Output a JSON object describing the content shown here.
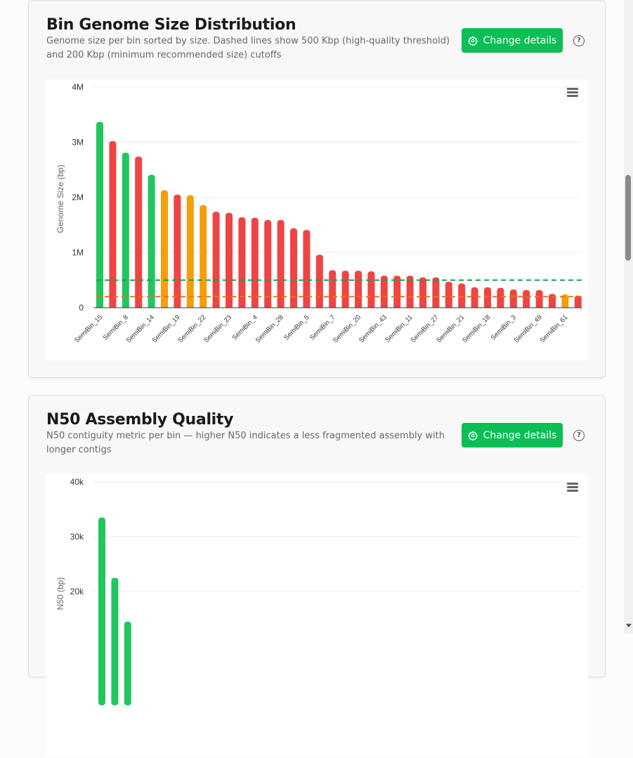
{
  "colors": {
    "high": "#22c55e",
    "medium": "#f59e0b",
    "low": "#ef4444",
    "button": "#0bbf55",
    "line_500k": "#16a34a",
    "line_200k": "#ea7317"
  },
  "cards": [
    {
      "title": "Bin Genome Size Distribution",
      "subtitle": "Genome size per bin sorted by size. Dashed lines show 500 Kbp (high-quality threshold) and 200 Kbp (minimum recommended size) cutoffs",
      "button": "Change details",
      "button_icon": "gear-icon",
      "help_icon": "question-circle-icon",
      "menu_icon": "hamburger-menu-icon"
    },
    {
      "title": "N50 Assembly Quality",
      "subtitle": "N50 contiguity metric per bin — higher N50 indicates a less fragmented assembly with longer contigs",
      "button": "Change details",
      "button_icon": "gear-icon",
      "help_icon": "question-circle-icon",
      "menu_icon": "hamburger-menu-icon"
    }
  ],
  "chart_data": [
    {
      "type": "bar",
      "ylabel": "Genome Size (bp)",
      "ylim": [
        0,
        4000000
      ],
      "yticks": [
        "0",
        "1M",
        "2M",
        "3M",
        "4M"
      ],
      "yticks_values": [
        0,
        1000000,
        2000000,
        3000000,
        4000000
      ],
      "tick_labels": [
        "SemiBin_15",
        "SemiBin_8",
        "SemiBin_14",
        "SemiBin_19",
        "SemiBin_22",
        "SemiBin_23",
        "SemiBin_4",
        "SemiBin_28",
        "SemiBin_5",
        "SemiBin_7",
        "SemiBin_20",
        "SemiBin_43",
        "SemiBin_11",
        "SemiBin_27",
        "SemiBin_21",
        "SemiBin_18",
        "SemiBin_3",
        "SemiBin_49",
        "SemiBin_61"
      ],
      "values": [
        3370000,
        3020000,
        2810000,
        2740000,
        2410000,
        2130000,
        2050000,
        2040000,
        1860000,
        1740000,
        1720000,
        1640000,
        1630000,
        1590000,
        1590000,
        1440000,
        1410000,
        960000,
        680000,
        670000,
        670000,
        660000,
        580000,
        580000,
        580000,
        550000,
        550000,
        470000,
        440000,
        370000,
        370000,
        360000,
        330000,
        320000,
        320000,
        250000,
        240000,
        220000
      ],
      "quality": [
        "high",
        "low",
        "high",
        "low",
        "high",
        "medium",
        "low",
        "medium",
        "medium",
        "low",
        "low",
        "low",
        "low",
        "low",
        "low",
        "low",
        "low",
        "low",
        "low",
        "low",
        "low",
        "low",
        "low",
        "low",
        "low",
        "low",
        "low",
        "low",
        "low",
        "low",
        "low",
        "low",
        "low",
        "low",
        "low",
        "low",
        "medium",
        "low"
      ],
      "reference_lines": [
        {
          "value": 500000,
          "color": "#16a34a"
        },
        {
          "value": 200000,
          "color": "#ea7317"
        }
      ],
      "grid": true
    },
    {
      "type": "bar",
      "ylabel": "N50 (bp)",
      "ylim": [
        0,
        40000
      ],
      "yticks": [
        "20k",
        "30k",
        "40k"
      ],
      "yticks_values": [
        20000,
        30000,
        40000
      ],
      "values": [
        33500,
        22500,
        14500
      ],
      "quality": [
        "high",
        "high",
        "high"
      ],
      "grid": true
    }
  ]
}
